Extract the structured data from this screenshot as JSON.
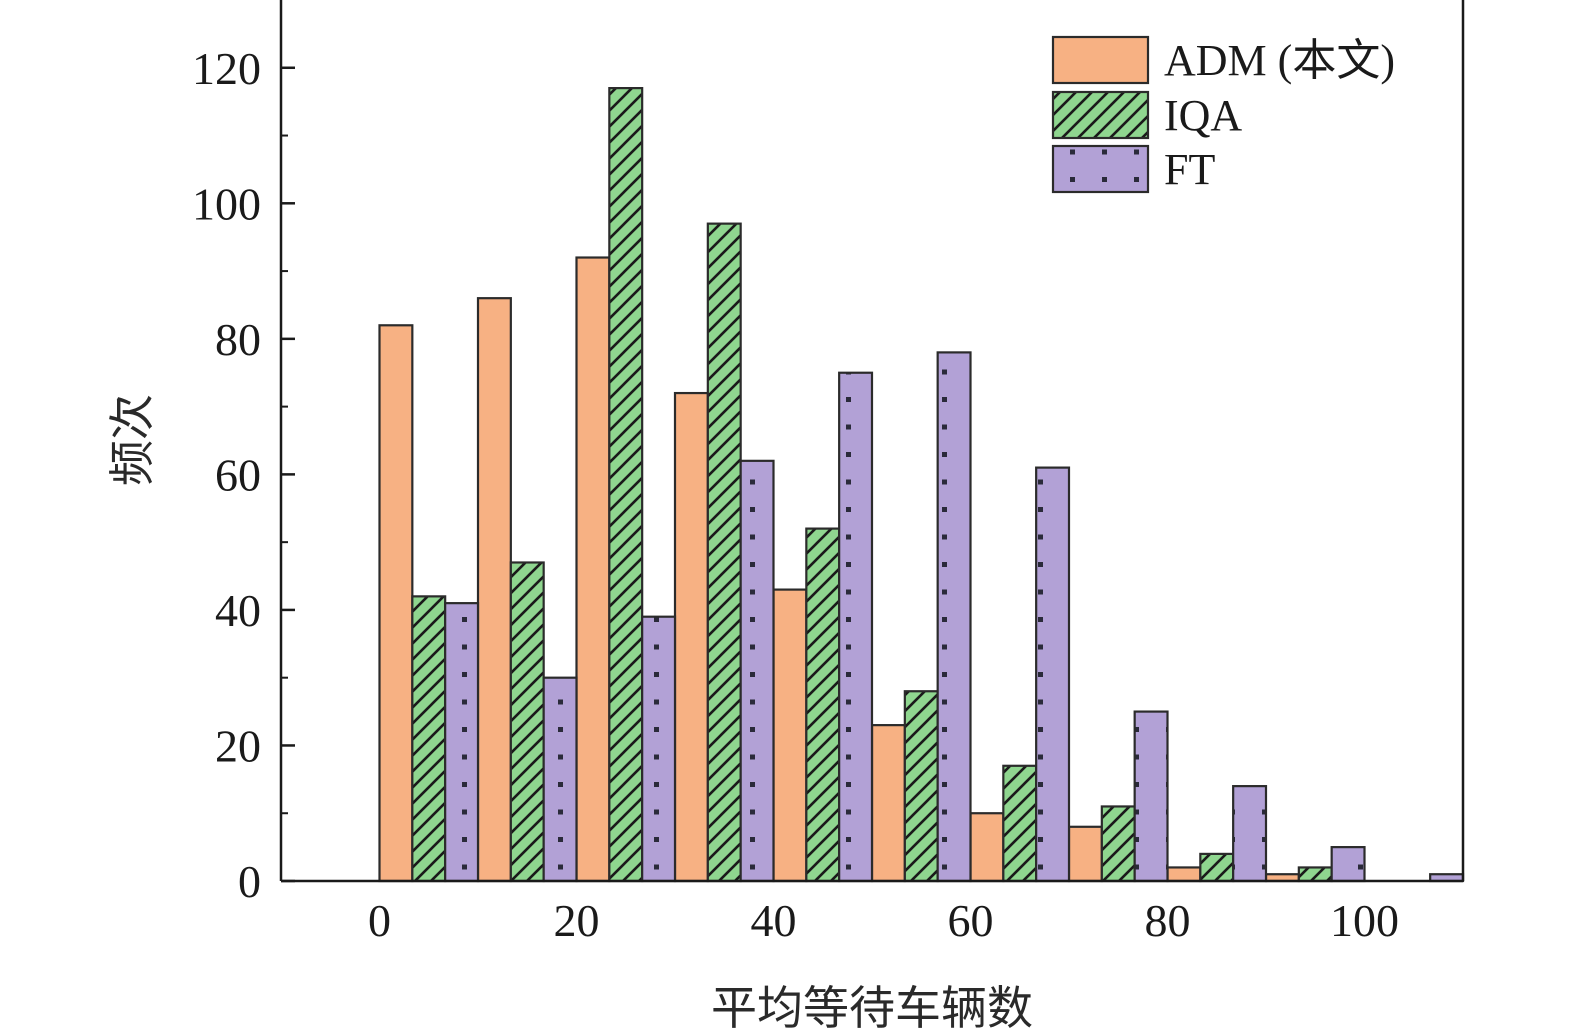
{
  "chart_data": {
    "type": "bar",
    "xlabel": "平均等待车辆数",
    "ylabel": "频次",
    "xlim": [
      -10,
      110
    ],
    "ylim": [
      0,
      130
    ],
    "xticks": [
      "0",
      "20",
      "40",
      "60",
      "80",
      "100"
    ],
    "yticks": [
      "0",
      "20",
      "40",
      "60",
      "80",
      "100",
      "120"
    ],
    "bin_width": 10,
    "bin_starts": [
      0,
      10,
      20,
      30,
      40,
      50,
      60,
      70,
      80,
      90,
      100
    ],
    "legend_position": "top-right",
    "series": [
      {
        "name": "ADM (本文)",
        "color": "#f7b183",
        "pattern": "solid",
        "values": [
          82,
          86,
          92,
          72,
          43,
          23,
          10,
          8,
          2,
          1,
          0
        ]
      },
      {
        "name": "IQA",
        "color": "#8fd68f",
        "pattern": "diagonal-hatch",
        "values": [
          42,
          47,
          117,
          97,
          52,
          28,
          17,
          11,
          4,
          2,
          0
        ]
      },
      {
        "name": "FT",
        "color": "#b2a1d6",
        "pattern": "dots",
        "values": [
          41,
          30,
          39,
          62,
          75,
          78,
          61,
          25,
          14,
          5,
          1
        ]
      }
    ]
  }
}
